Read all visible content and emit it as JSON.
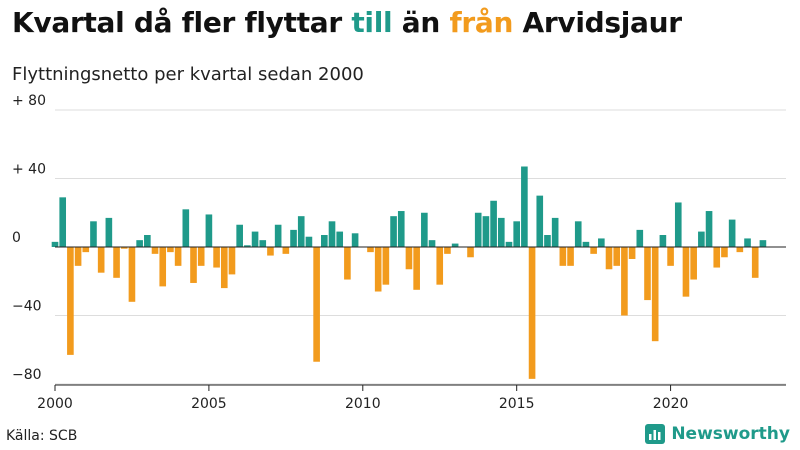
{
  "title": {
    "part1": "Kvartal då fler flyttar ",
    "part2": "till",
    "part3": " än ",
    "part4": "från",
    "part5": " Arvidsjaur"
  },
  "subtitle": "Flyttningsnetto per kvartal sedan 2000",
  "source": "Källa: SCB",
  "brand": "Newsworthy",
  "colors": {
    "positive": "#1f9a8a",
    "negative": "#f29b1d",
    "grid": "#dddddd",
    "axis": "#222222"
  },
  "chart_data": {
    "type": "bar",
    "title": "Kvartal då fler flyttar till än från Arvidsjaur",
    "subtitle": "Flyttningsnetto per kvartal sedan 2000",
    "xlabel": "",
    "ylabel": "",
    "ylim": [
      -80,
      80
    ],
    "y_ticks": [
      80,
      40,
      0,
      -40,
      -80
    ],
    "y_tick_labels": [
      "+ 80",
      "+ 40",
      "0",
      "−40",
      "−80"
    ],
    "x_range": [
      2000.0,
      2023.75
    ],
    "x_ticks": [
      2000,
      2005,
      2010,
      2015,
      2020
    ],
    "x_tick_labels": [
      "2000",
      "2005",
      "2010",
      "2015",
      "2020"
    ],
    "start_year": 2000,
    "start_quarter": 1,
    "values": [
      3,
      29,
      -63,
      -11,
      -3,
      15,
      -15,
      17,
      -18,
      -1,
      -32,
      4,
      7,
      -4,
      -23,
      -3,
      -11,
      22,
      -21,
      -11,
      19,
      -12,
      -24,
      -16,
      13,
      1,
      9,
      4,
      -5,
      13,
      -4,
      10,
      18,
      6,
      -67,
      7,
      15,
      9,
      -19,
      8,
      0,
      -3,
      -26,
      -22,
      18,
      21,
      -13,
      -25,
      20,
      4,
      -22,
      -4,
      2,
      0,
      -6,
      20,
      18,
      27,
      17,
      3,
      15,
      47,
      -77,
      30,
      7,
      17,
      -11,
      -11,
      15,
      3,
      -4,
      5,
      -13,
      -11,
      -40,
      -7,
      10,
      -31,
      -55,
      7,
      -11,
      26,
      -29,
      -19,
      9,
      21,
      -12,
      -6,
      16,
      -3,
      5,
      -18,
      4
    ]
  }
}
